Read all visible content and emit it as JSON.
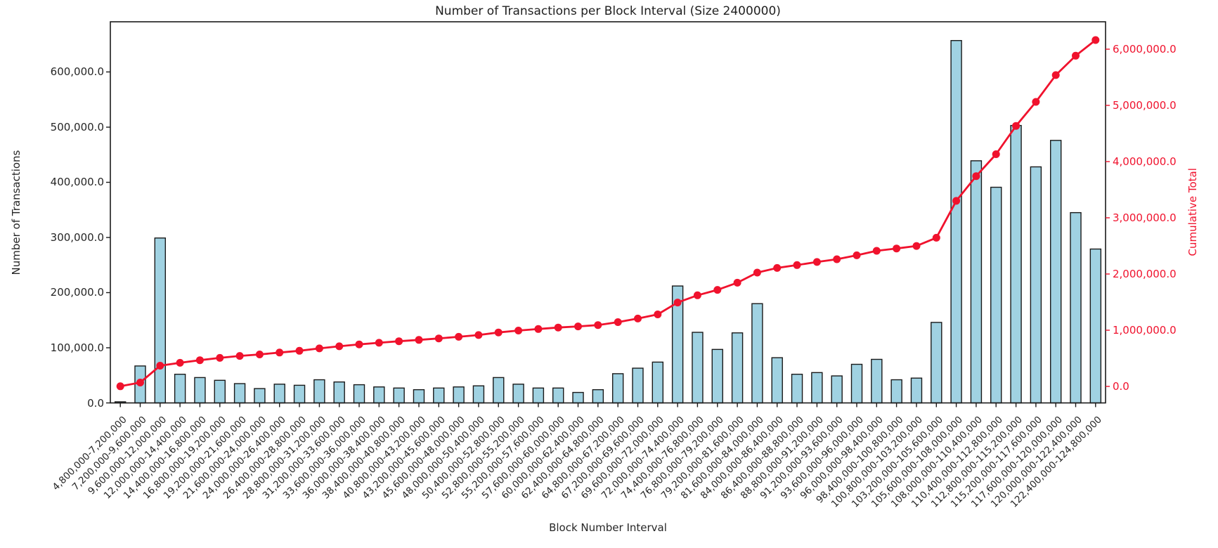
{
  "chart_data": {
    "type": "bar",
    "title": "Number of Transactions per Block Interval (Size 2400000)",
    "xlabel": "Block Number Interval",
    "ylabel_left": "Number of Transactions",
    "ylabel_right": "Cumulative Total",
    "grid": false,
    "legend": "none",
    "categories": [
      "4,800,000-7,200,000",
      "7,200,000-9,600,000",
      "9,600,000-12,000,000",
      "12,000,000-14,400,000",
      "14,400,000-16,800,000",
      "16,800,000-19,200,000",
      "19,200,000-21,600,000",
      "21,600,000-24,000,000",
      "24,000,000-26,400,000",
      "26,400,000-28,800,000",
      "28,800,000-31,200,000",
      "31,200,000-33,600,000",
      "33,600,000-36,000,000",
      "36,000,000-38,400,000",
      "38,400,000-40,800,000",
      "40,800,000-43,200,000",
      "43,200,000-45,600,000",
      "45,600,000-48,000,000",
      "48,000,000-50,400,000",
      "50,400,000-52,800,000",
      "52,800,000-55,200,000",
      "55,200,000-57,600,000",
      "57,600,000-60,000,000",
      "60,000,000-62,400,000",
      "62,400,000-64,800,000",
      "64,800,000-67,200,000",
      "67,200,000-69,600,000",
      "69,600,000-72,000,000",
      "72,000,000-74,400,000",
      "74,400,000-76,800,000",
      "76,800,000-79,200,000",
      "79,200,000-81,600,000",
      "81,600,000-84,000,000",
      "84,000,000-86,400,000",
      "86,400,000-88,800,000",
      "88,800,000-91,200,000",
      "91,200,000-93,600,000",
      "93,600,000-96,000,000",
      "96,000,000-98,400,000",
      "98,400,000-100,800,000",
      "100,800,000-103,200,000",
      "103,200,000-105,600,000",
      "105,600,000-108,000,000",
      "108,000,000-110,400,000",
      "110,400,000-112,800,000",
      "112,800,000-115,200,000",
      "115,200,000-117,600,000",
      "117,600,000-120,000,000",
      "120,000,000-122,400,000",
      "122,400,000-124,800,000"
    ],
    "series": [
      {
        "name": "Number of Transactions",
        "type": "bar",
        "axis": "left",
        "values": [
          2000,
          67000,
          299000,
          52000,
          46000,
          41000,
          35000,
          26000,
          34000,
          32000,
          42000,
          38000,
          33000,
          29000,
          27000,
          24000,
          27000,
          29000,
          31000,
          46000,
          34000,
          27000,
          27000,
          19000,
          24000,
          53000,
          63000,
          74000,
          212000,
          128000,
          97000,
          127000,
          180000,
          82000,
          52000,
          55000,
          49000,
          70000,
          79000,
          42000,
          45000,
          146000,
          657000,
          439000,
          391000,
          503000,
          428000,
          476000,
          345000,
          279000
        ]
      },
      {
        "name": "Cumulative Total",
        "type": "line",
        "axis": "right",
        "values": [
          2000,
          69000,
          368000,
          420000,
          466000,
          507000,
          542000,
          568000,
          602000,
          634000,
          676000,
          714000,
          747000,
          776000,
          803000,
          827000,
          854000,
          883000,
          914000,
          960000,
          994000,
          1021000,
          1048000,
          1067000,
          1091000,
          1144000,
          1207000,
          1281000,
          1493000,
          1621000,
          1718000,
          1845000,
          2025000,
          2107000,
          2159000,
          2214000,
          2263000,
          2333000,
          2412000,
          2454000,
          2499000,
          2645000,
          3302000,
          3741000,
          4132000,
          4635000,
          5063000,
          5539000,
          5884000,
          6163000
        ]
      }
    ],
    "left_axis": {
      "tick_labels": [
        "0.0",
        "100,000.0",
        "200,000.0",
        "300,000.0",
        "400,000.0",
        "500,000.0",
        "600,000.0"
      ],
      "tick_values": [
        0,
        100000,
        200000,
        300000,
        400000,
        500000,
        600000
      ],
      "lim": [
        0,
        691000
      ]
    },
    "right_axis": {
      "tick_labels": [
        "0.0",
        "1,000,000.0",
        "2,000,000.0",
        "3,000,000.0",
        "4,000,000.0",
        "5,000,000.0",
        "6,000,000.0"
      ],
      "tick_values": [
        0,
        1000000,
        2000000,
        3000000,
        4000000,
        5000000,
        6000000
      ],
      "lim": [
        -294000,
        6488000
      ]
    },
    "colors": {
      "bar_fill": "#a0d2e2",
      "bar_edge": "#1a1a1a",
      "line": "#f0122d",
      "spine": "#1a1a1a",
      "text": "#262626"
    }
  }
}
